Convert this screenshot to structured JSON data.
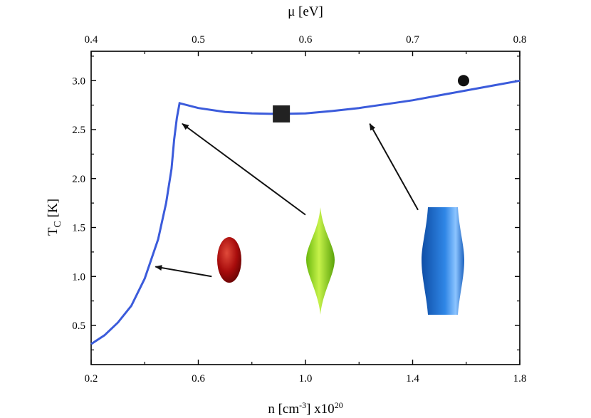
{
  "chart_data": {
    "type": "line",
    "title": "",
    "xlabel": {
      "base": "n [cm",
      "exp": "-3",
      "mid": "] x10",
      "exp2": "20"
    },
    "ylabel": {
      "base": "T",
      "sub": "C",
      "rest": " [K]"
    },
    "x2label": "μ [eV]",
    "xlim": [
      0.2,
      1.8
    ],
    "ylim": [
      0.1,
      3.3
    ],
    "x2lim": [
      0.4,
      0.8
    ],
    "x_ticks": [
      0.2,
      0.6,
      1.0,
      1.4,
      1.8
    ],
    "x_tick_labels": [
      "0.2",
      "0.6",
      "1.0",
      "1.4",
      "1.8"
    ],
    "y_ticks": [
      0.5,
      1.0,
      1.5,
      2.0,
      2.5,
      3.0
    ],
    "y_tick_labels": [
      "0.5",
      "1.0",
      "1.5",
      "2.0",
      "2.5",
      "3.0"
    ],
    "x2_ticks": [
      0.4,
      0.5,
      0.6,
      0.7,
      0.8
    ],
    "x2_tick_labels": [
      "0.4",
      "0.5",
      "0.6",
      "0.7",
      "0.8"
    ],
    "series": [
      {
        "name": "Tc",
        "color": "#3b5bdb",
        "x": [
          0.2,
          0.25,
          0.3,
          0.35,
          0.4,
          0.45,
          0.48,
          0.5,
          0.51,
          0.52,
          0.53,
          0.6,
          0.7,
          0.8,
          0.9,
          1.0,
          1.1,
          1.2,
          1.3,
          1.4,
          1.5,
          1.6,
          1.7,
          1.8
        ],
        "y": [
          0.31,
          0.4,
          0.53,
          0.7,
          0.98,
          1.38,
          1.75,
          2.1,
          2.4,
          2.62,
          2.77,
          2.72,
          2.68,
          2.665,
          2.66,
          2.665,
          2.69,
          2.72,
          2.76,
          2.8,
          2.85,
          2.9,
          2.95,
          3.0
        ]
      }
    ],
    "markers": [
      {
        "shape": "square",
        "x": 0.91,
        "y": 2.66,
        "color": "#222222"
      },
      {
        "shape": "circle",
        "x": 1.59,
        "y": 3.0,
        "color": "#111111"
      }
    ],
    "annotations": [
      {
        "kind": "arrow",
        "from": [
          0.65,
          1.0
        ],
        "to": [
          0.44,
          1.1
        ],
        "target": "oblate red spheroid"
      },
      {
        "kind": "arrow",
        "from": [
          1.0,
          1.63
        ],
        "to": [
          0.54,
          2.56
        ],
        "target": "green spindle"
      },
      {
        "kind": "arrow",
        "from": [
          1.42,
          1.68
        ],
        "to": [
          1.24,
          2.56
        ],
        "target": "blue cylinder"
      }
    ],
    "illustrations": [
      {
        "name": "red-spheroid",
        "color": "#b01010"
      },
      {
        "name": "green-spindle",
        "color": "#8ed41a"
      },
      {
        "name": "blue-cylinder",
        "color": "#1f6fd1"
      }
    ]
  }
}
